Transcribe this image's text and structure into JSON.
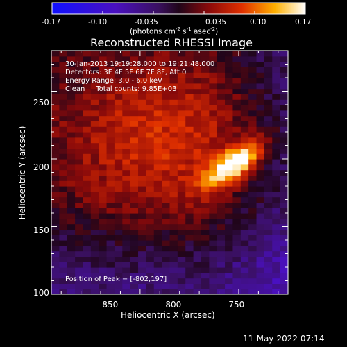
{
  "chart_data": {
    "type": "heatmap",
    "title": "Reconstructed RHESSI Image",
    "xlabel": "Heliocentric X (arcsec)",
    "ylabel": "Heliocentric Y (arcsec)",
    "xlim": [
      -895,
      -775
    ],
    "ylim": [
      100,
      280
    ],
    "x_ticks": [
      "-850",
      "-800",
      "-750"
    ],
    "y_ticks": [
      "100",
      "150",
      "200",
      "250"
    ],
    "colorbar": {
      "range": [
        -0.17,
        0.17
      ],
      "ticks": [
        "-0.17",
        "-0.10",
        "-0.035",
        "0.035",
        "0.10",
        "0.17"
      ],
      "unit_label": "(photons cm",
      "unit_exp1": "-2",
      "unit_mid": " s",
      "unit_exp2": "-1",
      "unit_tail": " asec",
      "unit_exp3": "-2",
      "unit_close": ")",
      "colormap": "blue-purple-red-yellow-white"
    },
    "annotations": [
      "30-Jan-2013 19:19:28.000 to 19:21:48.000",
      "Detectors: 3F 4F 5F 6F 7F 8F, Att 0",
      "Energy Range: 3.0 - 6.0 keV",
      "Clean     Total counts: 9.85E+03"
    ],
    "peak_label": "Position of Peak = [-802,197]",
    "peak": {
      "x": -802,
      "y": 197,
      "value": 0.17
    }
  },
  "footer": {
    "timestamp": "11-May-2022 07:14"
  }
}
